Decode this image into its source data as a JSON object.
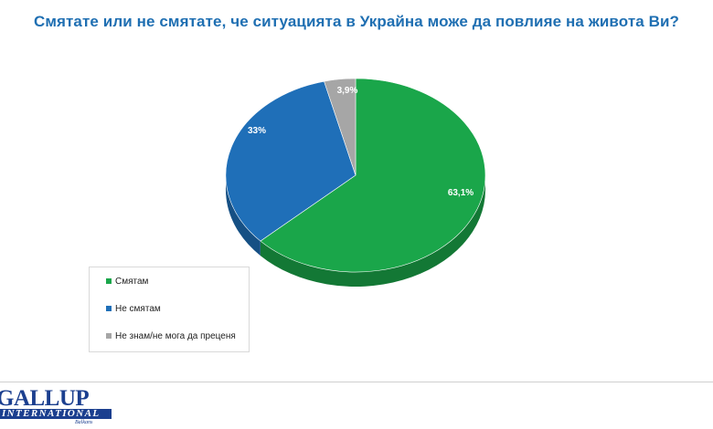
{
  "chart_data": {
    "type": "pie",
    "title": "Смятате или не смятате, че ситуацията в Украйна може да повлияе на живота Ви?",
    "slices": [
      {
        "label": "Смятам",
        "value": 63.1,
        "value_label": "63,1%",
        "color": "#1aa64a"
      },
      {
        "label": "Не смятам",
        "value": 33,
        "value_label": "33%",
        "color": "#1f6fb8"
      },
      {
        "label": "Не знам/не мога да преценя",
        "value": 3.9,
        "value_label": "3,9%",
        "color": "#a6a6a6"
      }
    ],
    "legend_placement": "bottom-left"
  },
  "logo": {
    "main": "GALLUP",
    "sub": "INTERNATIONAL",
    "tag": "Balkans"
  },
  "colors": {
    "title": "#1f6fb2",
    "brand": "#1b3f8f"
  }
}
